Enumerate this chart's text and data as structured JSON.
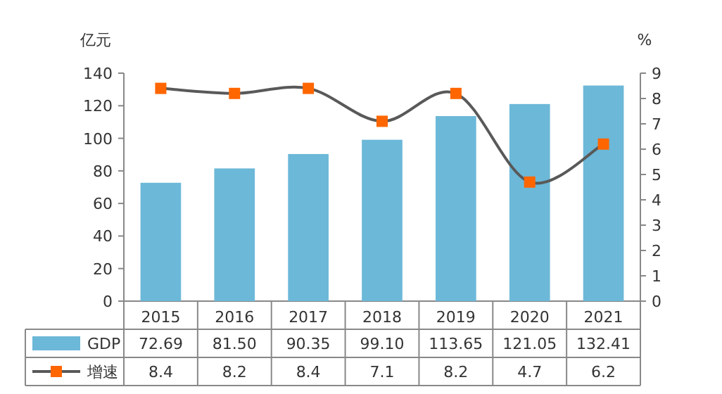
{
  "chart_data": {
    "type": "bar",
    "categories": [
      "2015",
      "2016",
      "2017",
      "2018",
      "2019",
      "2020",
      "2021"
    ],
    "ylabel": "亿元",
    "y2label": "%",
    "ylim": [
      0,
      140
    ],
    "yticks": [
      0,
      20,
      40,
      60,
      80,
      100,
      120,
      140
    ],
    "y2lim": [
      0,
      9
    ],
    "y2ticks": [
      0,
      1,
      2,
      3,
      4,
      5,
      6,
      7,
      8,
      9
    ],
    "legend": "bottom",
    "marker": "square",
    "series": [
      {
        "name": "GDP",
        "color": "#6cb8d8",
        "values": [
          72.69,
          81.5,
          90.35,
          99.1,
          113.65,
          121.05,
          132.41
        ],
        "value_labels": [
          "72.69",
          "81.50",
          "90.35",
          "99.10",
          "113.65",
          "121.05",
          "132.41"
        ]
      },
      {
        "name": "增速",
        "type": "line",
        "axis": "y2",
        "color": "#595959",
        "colors": [
          "#ff6600",
          "#ff6600",
          "#ff6600",
          "#ff6600",
          "#ff6600",
          "#ff6600",
          "#ff6600"
        ],
        "values": [
          8.4,
          8.2,
          8.4,
          7.1,
          8.2,
          4.7,
          6.2
        ],
        "value_labels": [
          "8.4",
          "8.2",
          "8.4",
          "7.1",
          "8.2",
          "4.7",
          "6.2"
        ]
      }
    ]
  }
}
